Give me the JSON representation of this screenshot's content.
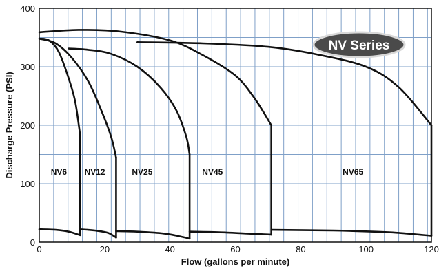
{
  "chart_data": {
    "type": "line",
    "title": "",
    "xlabel": "Flow (gallons per minute)",
    "ylabel": "Discharge Pressure (PSI)",
    "xlim": [
      0,
      120
    ],
    "ylim": [
      0,
      400
    ],
    "xticks": [
      0,
      20,
      40,
      60,
      80,
      100,
      120
    ],
    "yticks": [
      0,
      100,
      200,
      300,
      400
    ],
    "xtick_labels": [
      "0",
      "20",
      "40",
      "60",
      "80",
      "100",
      "120"
    ],
    "ytick_labels": [
      "0",
      "100",
      "200",
      "300",
      "400"
    ],
    "grid": true,
    "grid_x_step": 4.4,
    "grid_y_step": 50,
    "badge_text": "NV Series",
    "colors": {
      "curve": "#111111",
      "grid": "#7fa0c8",
      "frame": "#111111",
      "badge": "#4a4a4a"
    },
    "series": [
      {
        "name": "NV6",
        "upper": [
          [
            0,
            348
          ],
          [
            3,
            345
          ],
          [
            6,
            325
          ],
          [
            9,
            280
          ],
          [
            11,
            240
          ],
          [
            12.5,
            183
          ]
        ],
        "lower": [
          [
            0,
            22
          ],
          [
            5,
            21
          ],
          [
            9,
            18
          ],
          [
            12.5,
            12
          ]
        ]
      },
      {
        "name": "NV12",
        "upper": [
          [
            0,
            348
          ],
          [
            5,
            340
          ],
          [
            10,
            315
          ],
          [
            15,
            275
          ],
          [
            19,
            225
          ],
          [
            22,
            180
          ],
          [
            23.5,
            145
          ]
        ],
        "lower": [
          [
            12.5,
            22
          ],
          [
            17,
            20
          ],
          [
            21,
            16
          ],
          [
            23.5,
            8
          ]
        ]
      },
      {
        "name": "NV25",
        "upper": [
          [
            9,
            331
          ],
          [
            15,
            329
          ],
          [
            22,
            322
          ],
          [
            30,
            300
          ],
          [
            37,
            265
          ],
          [
            42,
            225
          ],
          [
            45,
            180
          ],
          [
            46,
            150
          ]
        ],
        "lower": [
          [
            23.5,
            19
          ],
          [
            30,
            18
          ],
          [
            38,
            15
          ],
          [
            43,
            10
          ],
          [
            46,
            6
          ]
        ]
      },
      {
        "name": "NV45",
        "upper": [
          [
            0,
            359
          ],
          [
            12,
            363
          ],
          [
            25,
            360
          ],
          [
            40,
            345
          ],
          [
            50,
            320
          ],
          [
            60,
            285
          ],
          [
            66,
            245
          ],
          [
            71,
            200
          ]
        ],
        "lower": [
          [
            46,
            18
          ],
          [
            55,
            17
          ],
          [
            63,
            15
          ],
          [
            71,
            13
          ]
        ]
      },
      {
        "name": "NV65",
        "upper": [
          [
            30,
            342
          ],
          [
            50,
            340
          ],
          [
            70,
            334
          ],
          [
            85,
            321
          ],
          [
            100,
            300
          ],
          [
            110,
            265
          ],
          [
            120,
            200
          ]
        ],
        "lower": [
          [
            71,
            21
          ],
          [
            90,
            20
          ],
          [
            100,
            18.5
          ],
          [
            110,
            16
          ],
          [
            120,
            11
          ]
        ]
      }
    ],
    "region_labels": [
      {
        "text": "NV6",
        "x": 6,
        "y": 120
      },
      {
        "text": "NV12",
        "x": 17,
        "y": 120
      },
      {
        "text": "NV25",
        "x": 31.5,
        "y": 120
      },
      {
        "text": "NV45",
        "x": 53,
        "y": 120
      },
      {
        "text": "NV65",
        "x": 96,
        "y": 120
      }
    ]
  }
}
